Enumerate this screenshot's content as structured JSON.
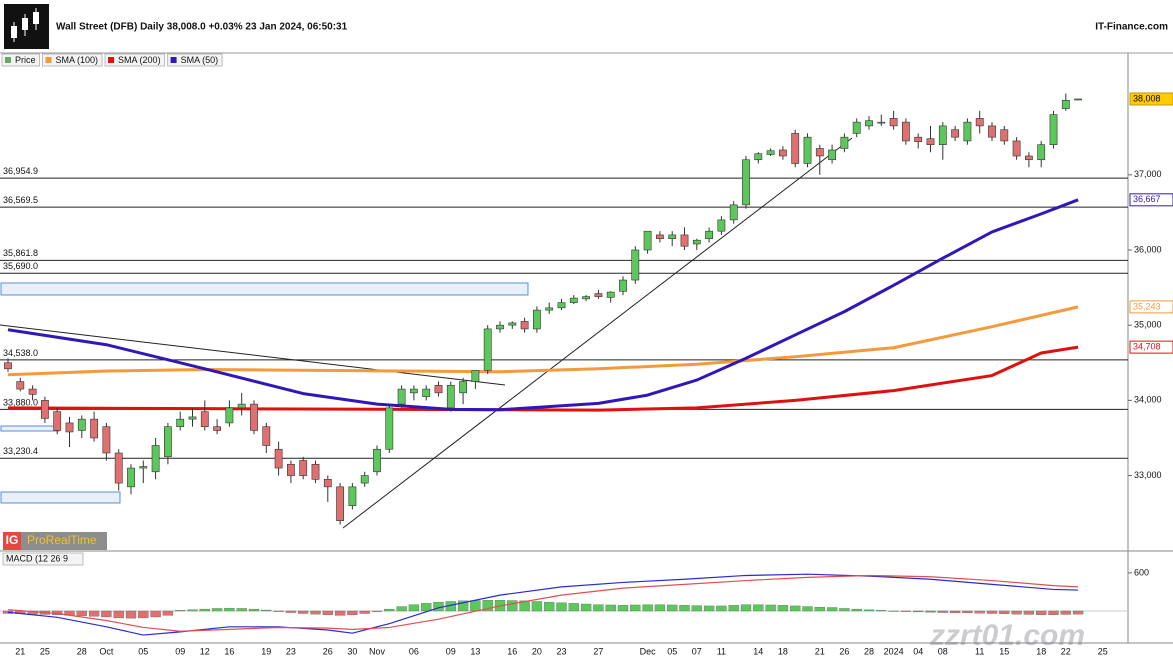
{
  "chart_data": {
    "type": "candlestick",
    "title": "Wall Street (DFB) Daily 38,008.0 +0.03% 23 Jan 2024, 06:50:31",
    "source": "IT-Finance.com",
    "logo": {
      "badge": "IG",
      "text": "ProRealTime"
    },
    "watermark": "zzrt01.com",
    "ylim": [
      32010,
      38420
    ],
    "yticks": [
      {
        "value": 33000,
        "label": "33,000"
      },
      {
        "value": 34000,
        "label": "34,000"
      },
      {
        "value": 35000,
        "label": "35,000"
      },
      {
        "value": 36000,
        "label": "36,000"
      },
      {
        "value": 37000,
        "label": "37,000"
      }
    ],
    "grid": false,
    "categories": [
      null,
      "21",
      null,
      "25",
      null,
      null,
      "28",
      null,
      "Oct",
      null,
      null,
      "05",
      null,
      null,
      "09",
      null,
      "12",
      null,
      "16",
      null,
      null,
      "19",
      null,
      "23",
      null,
      null,
      "26",
      null,
      "30",
      null,
      "Nov",
      null,
      null,
      "06",
      null,
      null,
      "09",
      null,
      "13",
      null,
      null,
      "16",
      null,
      "20",
      null,
      "23",
      null,
      null,
      "27",
      null,
      null,
      null,
      "Dec",
      null,
      "05",
      null,
      "07",
      null,
      "11",
      null,
      null,
      "14",
      null,
      "18",
      null,
      null,
      "21",
      null,
      "26",
      null,
      "28",
      null,
      "2024",
      null,
      "04",
      null,
      "08",
      null,
      null,
      "11",
      null,
      "15",
      null,
      null,
      "18",
      null,
      "22",
      null,
      null,
      "25",
      null
    ],
    "candles": {
      "name": "Price",
      "up_color": "#5cc85c",
      "down_color": "#e07070",
      "legend_color": "#6aa86a",
      "open": [
        34500,
        34250,
        34150,
        34000,
        33850,
        33700,
        33600,
        33750,
        33650,
        33300,
        32850,
        33100,
        33050,
        33250,
        33650,
        33750,
        33850,
        33650,
        33700,
        33900,
        33950,
        33650,
        33350,
        33150,
        33200,
        33150,
        32950,
        32850,
        32600,
        32900,
        33050,
        33350,
        33950,
        34100,
        34050,
        34200,
        33900,
        34100,
        34250,
        34400,
        34950,
        35000,
        35050,
        34950,
        35200,
        35230,
        35300,
        35350,
        35420,
        35370,
        35450,
        35600,
        36000,
        36200,
        36150,
        36200,
        36080,
        36150,
        36250,
        36400,
        36600,
        37200,
        37270,
        37330,
        37550,
        37150,
        37350,
        37200,
        37350,
        37550,
        37650,
        37700,
        37750,
        37700,
        37500,
        37480,
        37400,
        37600,
        37450,
        37750,
        37650,
        37600,
        37450,
        37250,
        37200,
        37400,
        37880,
        38000,
        null,
        null,
        null
      ],
      "high": [
        34560,
        34300,
        34200,
        34050,
        33900,
        33780,
        33800,
        33850,
        33700,
        33350,
        33150,
        33200,
        33500,
        33700,
        33850,
        33900,
        34000,
        33750,
        34000,
        34100,
        34000,
        33700,
        33450,
        33200,
        33250,
        33200,
        33000,
        32900,
        32900,
        33050,
        33400,
        33950,
        34200,
        34200,
        34200,
        34250,
        34250,
        34300,
        34400,
        35000,
        35050,
        35050,
        35100,
        35250,
        35300,
        35350,
        35400,
        35400,
        35470,
        35450,
        35650,
        36050,
        36250,
        36250,
        36250,
        36300,
        36150,
        36300,
        36450,
        36650,
        37250,
        37300,
        37350,
        37380,
        37600,
        37550,
        37400,
        37400,
        37550,
        37750,
        37780,
        37800,
        37850,
        37750,
        37550,
        37650,
        37700,
        37650,
        37750,
        37850,
        37700,
        37650,
        37500,
        37300,
        37450,
        37850,
        38080,
        38010,
        null,
        null,
        null
      ],
      "low": [
        34380,
        34120,
        34000,
        33700,
        33550,
        33380,
        33500,
        33450,
        33200,
        32800,
        32750,
        32900,
        32950,
        33150,
        33600,
        33650,
        33600,
        33550,
        33650,
        33800,
        33550,
        33300,
        33000,
        32900,
        32950,
        32900,
        32650,
        32350,
        32550,
        32850,
        33000,
        33300,
        33900,
        34000,
        34000,
        34050,
        33850,
        33950,
        34150,
        34350,
        34900,
        34950,
        34900,
        34900,
        35150,
        35200,
        35280,
        35320,
        35350,
        35300,
        35400,
        35550,
        35950,
        36100,
        36050,
        36000,
        36000,
        36100,
        36200,
        36350,
        36550,
        37150,
        37250,
        37200,
        37100,
        37100,
        37000,
        37150,
        37300,
        37500,
        37600,
        37650,
        37600,
        37400,
        37350,
        37300,
        37200,
        37450,
        37400,
        37550,
        37450,
        37400,
        37200,
        37100,
        37100,
        37350,
        37850,
        37990,
        null,
        null,
        null
      ],
      "close": [
        34420,
        34150,
        34080,
        33760,
        33600,
        33580,
        33750,
        33500,
        33300,
        32900,
        33100,
        33120,
        33400,
        33650,
        33750,
        33780,
        33650,
        33600,
        33900,
        33950,
        33600,
        33400,
        33100,
        33000,
        33000,
        32950,
        32850,
        32400,
        32850,
        33000,
        33350,
        33900,
        34150,
        34150,
        34150,
        34100,
        34200,
        34250,
        34400,
        34950,
        35000,
        35030,
        34950,
        35200,
        35230,
        35300,
        35360,
        35380,
        35380,
        35440,
        35600,
        36000,
        36250,
        36150,
        36200,
        36050,
        36130,
        36250,
        36400,
        36600,
        37200,
        37280,
        37320,
        37250,
        37150,
        37500,
        37250,
        37330,
        37500,
        37700,
        37720,
        37700,
        37650,
        37450,
        37440,
        37400,
        37650,
        37500,
        37700,
        37650,
        37500,
        37450,
        37250,
        37200,
        37400,
        37800,
        37990,
        38008,
        null,
        null,
        null
      ]
    },
    "last_tag": {
      "value": 38008,
      "label": "38,008"
    },
    "series": [
      {
        "name": "SMA (100)",
        "color": "#f39a3c",
        "x": [
          0,
          8,
          16,
          32,
          40,
          48,
          56,
          64,
          72,
          80,
          87
        ],
        "values": [
          34340,
          34390,
          34410,
          34390,
          34380,
          34420,
          34480,
          34580,
          34700,
          34980,
          35243
        ],
        "tag": {
          "value": 35243,
          "label": "35,243"
        }
      },
      {
        "name": "SMA (200)",
        "color": "#e01010",
        "x": [
          0,
          16,
          32,
          48,
          56,
          64,
          72,
          80,
          84,
          87
        ],
        "values": [
          33900,
          33890,
          33880,
          33870,
          33900,
          34000,
          34130,
          34330,
          34630,
          34708
        ],
        "tag": {
          "value": 34708,
          "label": "34,708"
        }
      },
      {
        "name": "SMA (50)",
        "color": "#3018b8",
        "x": [
          0,
          8,
          16,
          24,
          30,
          36,
          40,
          48,
          52,
          56,
          60,
          64,
          68,
          72,
          76,
          80,
          84,
          87
        ],
        "values": [
          34939,
          34740,
          34420,
          34090,
          33950,
          33880,
          33875,
          33960,
          34070,
          34270,
          34560,
          34870,
          35180,
          35530,
          35890,
          36240,
          36480,
          36667
        ],
        "tag": {
          "value": 36667,
          "label": "36,667"
        }
      }
    ],
    "levels": [
      {
        "value": 36954.9,
        "label": "36,954.9"
      },
      {
        "value": 36569.5,
        "label": "36,569.5"
      },
      {
        "value": 35861.8,
        "label": "35,861.8"
      },
      {
        "value": 35690.0,
        "label": "35,690.0"
      },
      {
        "value": 34538.0,
        "label": "34,538.0"
      },
      {
        "value": 33880.0,
        "label": "33,880.0"
      },
      {
        "value": 33230.4,
        "label": "33,230.4"
      }
    ],
    "macd": {
      "title": "MACD (12 26 9",
      "ylim": [
        -505,
        930
      ],
      "yticks": [
        600
      ],
      "up_color": "#5cc85c",
      "down_color": "#e07070",
      "histogram": [
        -40,
        -45,
        -50,
        -55,
        -60,
        -70,
        -75,
        -85,
        -95,
        -110,
        -115,
        -110,
        -95,
        -70,
        10,
        20,
        30,
        40,
        45,
        40,
        30,
        15,
        -10,
        -25,
        -40,
        -50,
        -60,
        -70,
        -60,
        -40,
        -10,
        30,
        70,
        100,
        120,
        140,
        150,
        160,
        165,
        170,
        170,
        165,
        160,
        150,
        140,
        130,
        120,
        110,
        100,
        95,
        90,
        95,
        100,
        100,
        95,
        90,
        85,
        80,
        80,
        90,
        100,
        100,
        95,
        90,
        80,
        70,
        60,
        55,
        40,
        30,
        20,
        10,
        0,
        -10,
        -15,
        -20,
        -25,
        -30,
        -30,
        -35,
        -40,
        -45,
        -50,
        -55,
        -60,
        -60,
        -55,
        -50,
        null,
        null,
        null
      ],
      "lines": [
        {
          "color": "#2a2ad0",
          "x": [
            0,
            4,
            8,
            11,
            14,
            18,
            22,
            26,
            28,
            31,
            35,
            40,
            45,
            50,
            55,
            60,
            65,
            70,
            75,
            80,
            85,
            87
          ],
          "values": [
            -20,
            -100,
            -250,
            -380,
            -330,
            -250,
            -250,
            -300,
            -350,
            -200,
            50,
            250,
            380,
            450,
            500,
            560,
            580,
            550,
            500,
            420,
            340,
            330
          ]
        },
        {
          "color": "#e05050",
          "x": [
            0,
            4,
            8,
            11,
            14,
            18,
            22,
            26,
            28,
            31,
            35,
            40,
            45,
            50,
            55,
            60,
            65,
            70,
            75,
            80,
            85,
            87
          ],
          "values": [
            20,
            -40,
            -150,
            -260,
            -320,
            -290,
            -260,
            -270,
            -290,
            -260,
            -130,
            80,
            250,
            360,
            420,
            480,
            530,
            560,
            540,
            480,
            400,
            380
          ]
        }
      ]
    }
  }
}
